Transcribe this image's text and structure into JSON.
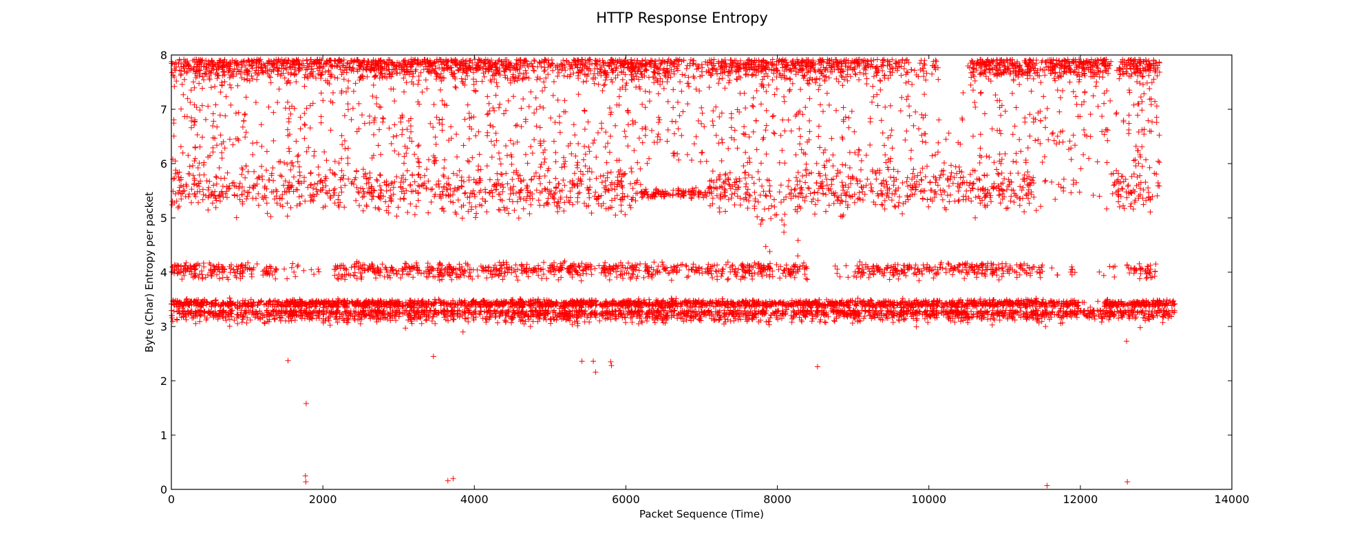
{
  "chart_data": {
    "type": "scatter",
    "title": "HTTP Response Entropy",
    "xlabel": "Packet Sequence (Time)",
    "ylabel": "Byte (Char) Entropy per packet",
    "xlim": [
      0,
      14000
    ],
    "ylim": [
      0,
      8
    ],
    "x_ticks": [
      0,
      2000,
      4000,
      6000,
      8000,
      10000,
      12000,
      14000
    ],
    "y_ticks": [
      0,
      1,
      2,
      3,
      4,
      5,
      6,
      7,
      8
    ],
    "marker": "+",
    "color": "#ff0000",
    "grid": false,
    "legend": "none",
    "x_max_observed": 13250,
    "bands": [
      {
        "y_center": 7.85,
        "x_range": [
          0,
          13050
        ]
      },
      {
        "y_center": 5.55,
        "x_range": [
          0,
          13050
        ]
      },
      {
        "y_center": 4.05,
        "x_range": [
          0,
          13000
        ]
      },
      {
        "y_center": 3.4,
        "x_range": [
          0,
          13250
        ]
      },
      {
        "y_center": 3.25,
        "x_range": [
          0,
          13250
        ]
      }
    ],
    "outliers": [
      {
        "x": 1540,
        "y": 2.37
      },
      {
        "x": 1780,
        "y": 1.58
      },
      {
        "x": 1770,
        "y": 0.25
      },
      {
        "x": 1775,
        "y": 0.14
      },
      {
        "x": 3460,
        "y": 2.45
      },
      {
        "x": 3650,
        "y": 0.16
      },
      {
        "x": 3720,
        "y": 0.2
      },
      {
        "x": 5420,
        "y": 2.36
      },
      {
        "x": 5570,
        "y": 2.36
      },
      {
        "x": 5600,
        "y": 2.16
      },
      {
        "x": 5800,
        "y": 2.35
      },
      {
        "x": 5810,
        "y": 2.28
      },
      {
        "x": 8530,
        "y": 2.26
      },
      {
        "x": 11560,
        "y": 0.07
      },
      {
        "x": 12620,
        "y": 0.14
      },
      {
        "x": 12610,
        "y": 2.73
      },
      {
        "x": 3850,
        "y": 2.9
      },
      {
        "x": 3090,
        "y": 2.97
      },
      {
        "x": 11540,
        "y": 3.0
      },
      {
        "x": 12790,
        "y": 2.98
      },
      {
        "x": 8270,
        "y": 4.3
      },
      {
        "x": 7900,
        "y": 4.38
      }
    ]
  }
}
